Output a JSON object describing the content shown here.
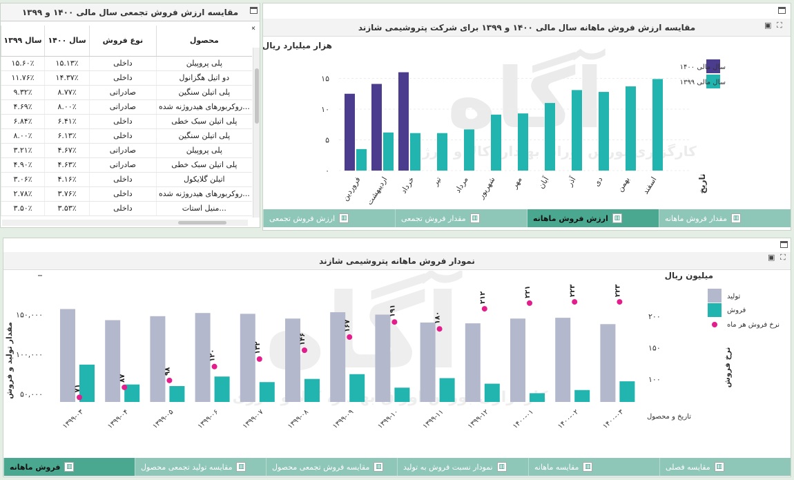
{
  "table_panel": {
    "title": "مقایسه ارزش فروش تجمعی سال مالی ۱۴۰۰ و ۱۳۹۹",
    "headers": [
      "محصول",
      "نوع فروش",
      "سال ۱۴۰۰",
      "سال ۱۳۹۹"
    ],
    "rows": [
      [
        "پلی پروپیلن",
        "داخلی",
        "۱۵.۱۳٪",
        "۱۵.۶۰٪"
      ],
      [
        "دو اتیل هگزانول",
        "داخلی",
        "۱۴.۳۷٪",
        "۱۱.۷۶٪"
      ],
      [
        "پلی اتیلن سنگین",
        "صادراتی",
        "۸.۷۷٪",
        "۹.۳۲٪"
      ],
      [
        "...روکربورهای هیدروژنه شده",
        "صادراتی",
        "۸.۰۰٪",
        "۴.۶۹٪"
      ],
      [
        "پلی اتیلن سبک خطی",
        "داخلی",
        "۶.۴۱٪",
        "۶.۸۴٪"
      ],
      [
        "پلی اتیلن سنگین",
        "داخلی",
        "۶.۱۳٪",
        "۸.۰۰٪"
      ],
      [
        "پلی پروپیلن",
        "صادراتی",
        "۴.۶۷٪",
        "۳.۲۱٪"
      ],
      [
        "پلی اتیلن سبک خطی",
        "صادراتی",
        "۴.۶۳٪",
        "۴.۹۰٪"
      ],
      [
        "اتیلن گلایکول",
        "داخلی",
        "۴.۱۶٪",
        "۳.۰۶٪"
      ],
      [
        "...روکربورهای هیدروژنه شده",
        "داخلی",
        "۳.۷۶٪",
        "۲.۷۸٪"
      ],
      [
        "...منیل استات",
        "داخلی",
        "۳.۵۳٪",
        "۳.۵۰٪"
      ]
    ],
    "tabs": [
      {
        "label": "مقدار فروش ماهانه",
        "active": false
      },
      {
        "label": "ارزش فروش ماهانه",
        "active": true
      },
      {
        "label": "مقدار فروش تجمعی",
        "active": false
      },
      {
        "label": "ارزش فروش تجمعی",
        "active": false
      }
    ]
  },
  "top_chart_panel": {
    "title": "مقایسه ارزش فروش ماهانه سال مالی ۱۴۰۰ و ۱۳۹۹ برای شرکت پتروشیمی شازند",
    "watermark": "آگاه",
    "watermark_sub": "کارگزاری بورس اوراق بهادار، کالا و انرژی"
  },
  "bottom_chart_panel": {
    "title": "نمودار فروش ماهانه پتروشیمی شازند",
    "tabs": [
      {
        "label": "مقایسه فصلی",
        "active": false
      },
      {
        "label": "مقایسه ماهانه",
        "active": false
      },
      {
        "label": "نمودار نسبت فروش به تولید",
        "active": false
      },
      {
        "label": "مقایسه فروش تجمعی محصول",
        "active": false
      },
      {
        "label": "مقایسه تولید تجمعی محصول",
        "active": false
      },
      {
        "label": "فروش ماهانه",
        "active": true
      }
    ]
  },
  "chart_data": [
    {
      "type": "bar",
      "title": "مقایسه ارزش فروش ماهانه سال مالی ۱۴۰۰ و ۱۳۹۹ برای شرکت پتروشیمی شازند",
      "ylabel": "هزار میلیارد ریال",
      "xlabel": "تاریخ",
      "ylim": [
        0,
        17
      ],
      "yticks": [
        0,
        5,
        10,
        15
      ],
      "ytick_labels": [
        "۰",
        "۵",
        "۱۰",
        "۱۵"
      ],
      "categories": [
        "فروردین",
        "اردیبهشت",
        "خرداد",
        "تیر",
        "مرداد",
        "شهریور",
        "مهر",
        "آبان",
        "آذر",
        "دی",
        "بهمن",
        "اسفند"
      ],
      "series": [
        {
          "name": "سال مالی ۱۴۰۰",
          "color": "#4b3c8e",
          "values": [
            12.5,
            14.1,
            16.0,
            null,
            null,
            null,
            null,
            null,
            null,
            null,
            null,
            null
          ]
        },
        {
          "name": "سال مالی ۱۳۹۹",
          "color": "#22b5b0",
          "values": [
            3.5,
            6.2,
            6.1,
            6.1,
            6.7,
            9.1,
            9.3,
            11.0,
            13.1,
            12.8,
            13.7,
            14.9
          ]
        }
      ],
      "legend": "top-right"
    },
    {
      "type": "bar",
      "title": "نمودار فروش ماهانه پتروشیمی شازند",
      "ylabel": "مقدار تولید و فروش",
      "y2label": "نرخ فروش",
      "y2unit": "میلیون ریال",
      "xlabel": "تاریخ و محصول",
      "ylim": [
        40000,
        170000
      ],
      "yticks": [
        50000,
        100000,
        150000
      ],
      "ytick_labels": [
        "۵۰,۰۰۰",
        "۱۰۰,۰۰۰",
        "۱۵۰,۰۰۰"
      ],
      "y2lim": [
        60,
        250
      ],
      "y2ticks": [
        100,
        150,
        200
      ],
      "y2tick_labels": [
        "۱۰۰",
        "۱۵۰",
        "۲۰۰"
      ],
      "categories": [
        "۱۳۹۹-۰۳",
        "۱۳۹۹-۰۴",
        "۱۳۹۹-۰۵",
        "۱۳۹۹-۰۶",
        "۱۳۹۹-۰۷",
        "۱۳۹۹-۰۸",
        "۱۳۹۹-۰۹",
        "۱۳۹۹-۱۰",
        "۱۳۹۹-۱۱",
        "۱۳۹۹-۱۲",
        "۱۴۰۰-۰۱",
        "۱۴۰۰-۰۲",
        "۱۴۰۰-۰۳"
      ],
      "series": [
        {
          "name": "تولید",
          "color": "#b4b8cc",
          "values": [
            157000,
            143000,
            148000,
            152000,
            151000,
            145000,
            153000,
            150000,
            140000,
            139000,
            145000,
            146000,
            138000
          ]
        },
        {
          "name": "فروش",
          "color": "#22b5b0",
          "values": [
            87000,
            62000,
            60000,
            72000,
            65000,
            69000,
            75000,
            58000,
            70000,
            63000,
            51000,
            55000,
            66000
          ]
        },
        {
          "name": "نرخ فروش هر ماه",
          "color": "#e31e8c",
          "axis": "y2",
          "values": [
            71,
            87,
            98,
            120,
            132,
            146,
            167,
            191,
            180,
            212,
            221,
            223,
            223
          ],
          "labels": [
            "۷۱",
            "۸۷",
            "۹۸",
            "۱۲۰",
            "۱۳۲",
            "۱۴۶",
            "۱۶۷",
            "۱۹۱",
            "۱۸۰",
            "۲۱۲",
            "۲۲۱",
            "۲۲۳",
            "۲۲۳"
          ]
        }
      ],
      "legend": "top-right"
    }
  ]
}
